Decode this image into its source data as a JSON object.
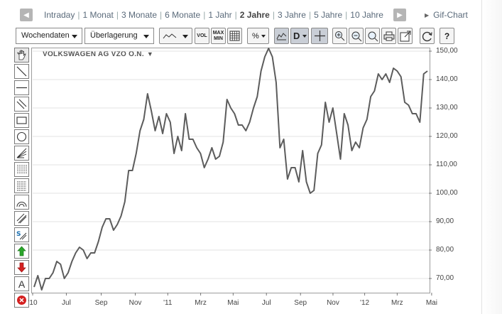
{
  "period_bar": {
    "periods": [
      "Intraday",
      "1 Monat",
      "3 Monate",
      "6 Monate",
      "1 Jahr",
      "2 Jahre",
      "3 Jahre",
      "5 Jahre",
      "10 Jahre"
    ],
    "active": "2 Jahre",
    "gif_label": "Gif-Chart"
  },
  "toolbar": {
    "interval_select": "Wochendaten",
    "overlay_select": "Überlagerung",
    "vol_label": "VOL",
    "maxmin_top": "MAX",
    "maxmin_bottom": "MIN",
    "percent_label": "%",
    "d_label": "D",
    "help_label": "?"
  },
  "tools": [
    "hand-icon",
    "line-icon",
    "horizontal-line-icon",
    "parallel-lines-icon",
    "rectangle-icon",
    "circle-icon",
    "fan-icon",
    "fibonacci-vertical-icon",
    "fibonacci-horizontal-icon",
    "arcs-icon",
    "channel-icon",
    "signal-icon",
    "buy-arrow-icon",
    "sell-arrow-icon",
    "text-icon",
    "delete-icon"
  ],
  "tool_text_label": "A",
  "colors": {
    "line": "#5c5c5c",
    "grid": "#e3e3e3",
    "buy": "#2aa52a",
    "sell": "#d42020",
    "delete": "#d42020"
  },
  "chart_data": {
    "type": "line",
    "title": "VOLKSWAGEN AG VZO O.N.",
    "ylim": [
      65,
      151
    ],
    "y_ticks": [
      "150,00",
      "140,00",
      "130,00",
      "120,00",
      "110,00",
      "100,00",
      "90,00",
      "80,00",
      "70,00"
    ],
    "y_tick_values": [
      150,
      140,
      130,
      120,
      110,
      100,
      90,
      80,
      70
    ],
    "x_ticks": [
      "'10",
      "Jul",
      "Sep",
      "Nov",
      "'11",
      "Mrz",
      "Mai",
      "Jul",
      "Sep",
      "Nov",
      "'12",
      "Mrz",
      "Mai"
    ],
    "x_tick_positions": [
      0,
      8.5,
      17.3,
      25.9,
      34.1,
      42.4,
      50.6,
      59,
      67.6,
      75.8,
      83.8,
      92,
      100.7
    ],
    "series": [
      {
        "values": [
          67,
          71,
          66,
          70,
          70,
          72,
          76,
          75,
          70,
          72,
          76,
          79,
          81,
          80,
          77,
          79,
          79,
          83,
          88,
          91,
          91,
          87,
          89,
          92,
          97,
          108,
          108,
          114,
          122,
          126,
          135,
          129,
          122,
          127,
          121,
          128,
          125,
          114,
          120,
          115,
          128,
          119,
          119,
          116,
          114,
          109,
          112,
          116,
          112,
          113,
          118,
          133,
          130,
          128,
          124,
          124,
          122,
          125,
          130,
          134,
          143,
          148,
          151,
          148,
          139,
          116,
          119,
          105,
          109,
          109,
          104,
          115,
          104,
          100,
          101,
          114,
          117,
          132,
          125,
          130,
          121,
          112,
          128,
          124,
          115,
          118,
          116,
          123,
          126,
          134,
          136,
          142,
          140,
          142,
          139,
          144,
          143,
          141,
          132,
          131,
          128,
          128,
          125,
          142,
          143
        ]
      }
    ]
  }
}
